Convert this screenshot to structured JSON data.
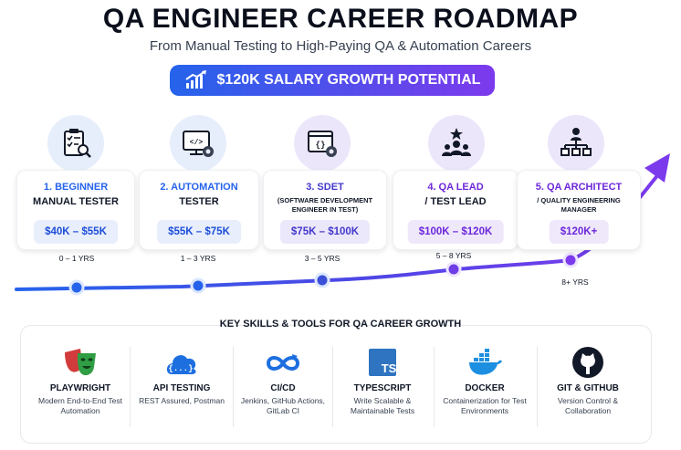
{
  "title": "QA ENGINEER CAREER ROADMAP",
  "subtitle": "From Manual Testing to High-Paying QA & Automation Careers",
  "salary_badge": "$120K SALARY GROWTH POTENTIAL",
  "colors": {
    "blue": "#2563eb",
    "purple": "#7c3aed",
    "accent_bg": "#e8eefb"
  },
  "stages": [
    {
      "title": "1. BEGINNER",
      "sub": "MANUAL TESTER",
      "salary": "$40K – $55K",
      "years": "0 – 1 YRS",
      "icon": "clipboard-checklist-icon"
    },
    {
      "title": "2. AUTOMATION",
      "sub": "TESTER",
      "salary": "$55K – $75K",
      "years": "1 – 3 YRS",
      "icon": "monitor-code-gear-icon"
    },
    {
      "title": "3. SDET",
      "sub": "(SOFTWARE DEVELOPMENT ENGINEER IN TEST)",
      "salary": "$75K – $100K",
      "years": "3 – 5 YRS",
      "icon": "code-window-gear-icon"
    },
    {
      "title": "4. QA LEAD",
      "sub": "/ TEST LEAD",
      "salary": "$100K – $120K",
      "years": "5 – 8 YRS",
      "icon": "team-star-icon"
    },
    {
      "title": "5. QA ARCHITECT",
      "sub": "/ QUALITY ENGINEERING MANAGER",
      "salary": "$120K+",
      "years": "8+ YRS",
      "icon": "org-chart-icon"
    }
  ],
  "skills_heading": "KEY SKILLS & TOOLS FOR QA CAREER GROWTH",
  "skills": [
    {
      "name": "PLAYWRIGHT",
      "desc": "Modern End-to-End Test Automation",
      "icon": "playwright-masks-icon"
    },
    {
      "name": "API TESTING",
      "desc": "REST Assured, Postman",
      "icon": "cloud-api-icon"
    },
    {
      "name": "CI/CD",
      "desc": "Jenkins, GitHub Actions, GitLab CI",
      "icon": "infinity-loop-icon"
    },
    {
      "name": "TYPESCRIPT",
      "desc": "Write Scalable & Maintainable Tests",
      "icon": "typescript-icon",
      "icon_text": "TS"
    },
    {
      "name": "DOCKER",
      "desc": "Containerization for Test Environments",
      "icon": "docker-whale-icon"
    },
    {
      "name": "GIT & GITHUB",
      "desc": "Version Control & Collaboration",
      "icon": "github-octocat-icon"
    }
  ]
}
